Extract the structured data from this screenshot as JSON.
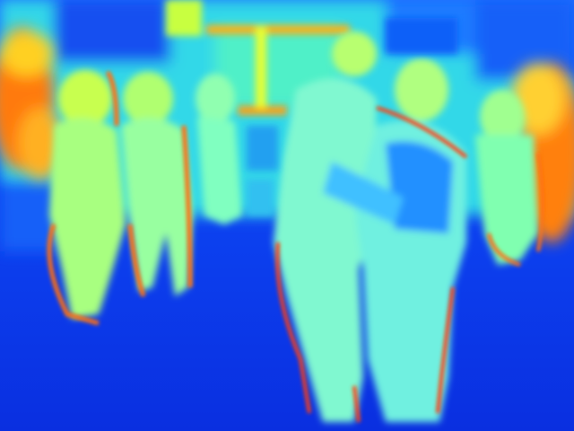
{
  "image": {
    "kind": "thermal-camera-frame",
    "colormap": "jet",
    "palette": {
      "cold": "#0a2fe0",
      "cool": "#1aa0ff",
      "mid": "#39f0d8",
      "warm": "#d8ff40",
      "hot": "#ff9a10",
      "hottest": "#ff3010"
    }
  }
}
